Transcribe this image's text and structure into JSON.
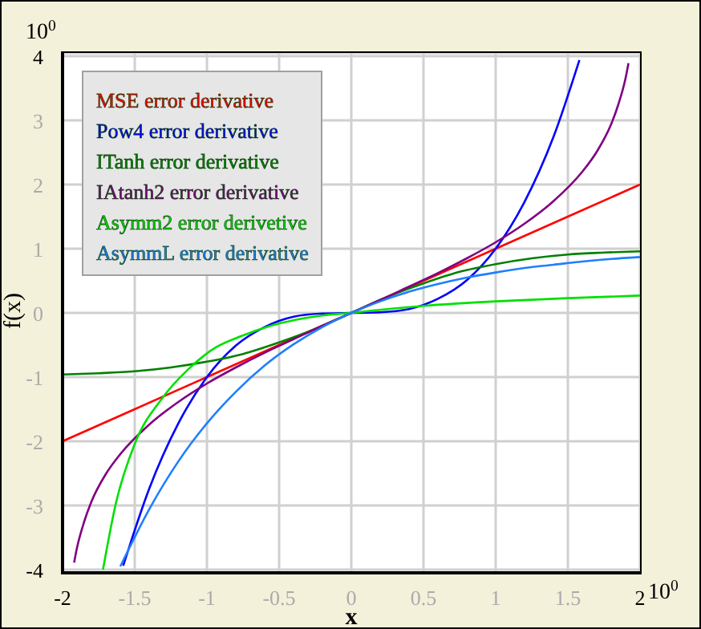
{
  "chart_data": {
    "type": "line",
    "xlabel": "x",
    "ylabel": "f(x)",
    "annotations": [
      "10$^{0}$",
      "10$^{0}$"
    ],
    "xlim": [
      -2,
      2
    ],
    "xticks": [
      -2,
      -1.5,
      -1,
      -0.5,
      0,
      0.5,
      1,
      1.5,
      2
    ],
    "ylim": [
      -4.05,
      4.05
    ],
    "yticks": [
      -4,
      -3,
      -2,
      -1,
      0,
      1,
      2,
      3,
      4
    ],
    "grid": true,
    "legend": "top left",
    "series": [
      {
        "name": "MSE error derivative",
        "color": "#ff0000",
        "x": [
          -2,
          -1,
          0,
          1,
          2
        ],
        "values": [
          -2,
          -1,
          0,
          1,
          2
        ]
      },
      {
        "name": "Pow4 error derivative",
        "color": "#0000ff",
        "x": [
          -1.58,
          -1.4,
          -1.2,
          -1,
          -0.8,
          -0.6,
          -0.4,
          -0.2,
          0,
          0.2,
          0.4,
          0.6,
          0.8,
          1,
          1.2,
          1.4,
          1.58
        ],
        "values": [
          -3.94,
          -2.74,
          -1.73,
          -1,
          -0.51,
          -0.22,
          -0.06,
          -0.01,
          0,
          0.01,
          0.06,
          0.22,
          0.51,
          1,
          1.73,
          2.74,
          3.94
        ]
      },
      {
        "name": "ITanh error derivative",
        "color": "#008000",
        "x": [
          -2,
          -1.75,
          -1.5,
          -1.25,
          -1,
          -0.75,
          -0.5,
          -0.25,
          0,
          0.25,
          0.5,
          0.75,
          1,
          1.25,
          1.5,
          1.75,
          2
        ],
        "values": [
          -0.96,
          -0.94,
          -0.91,
          -0.85,
          -0.76,
          -0.64,
          -0.46,
          -0.25,
          0,
          0.25,
          0.46,
          0.64,
          0.76,
          0.85,
          0.91,
          0.94,
          0.96
        ]
      },
      {
        "name": "IAtanh2 error derivative",
        "color": "#800080",
        "x": [
          -1.92,
          -1.9,
          -1.85,
          -1.8,
          -1.7,
          -1.6,
          -1.4,
          -1.2,
          -1,
          -0.8,
          -0.6,
          -0.4,
          -0.2,
          0,
          0.2,
          0.4,
          0.6,
          0.8,
          1,
          1.2,
          1.4,
          1.6,
          1.7,
          1.8,
          1.85,
          1.9,
          1.92
        ],
        "values": [
          -3.89,
          -3.66,
          -3.25,
          -2.94,
          -2.51,
          -2.2,
          -1.74,
          -1.39,
          -1.1,
          -0.85,
          -0.62,
          -0.41,
          -0.2,
          0,
          0.2,
          0.41,
          0.62,
          0.85,
          1.1,
          1.39,
          1.74,
          2.2,
          2.51,
          2.94,
          3.25,
          3.66,
          3.89
        ]
      },
      {
        "name": "Asymm2 error derivetive",
        "color": "#00e000",
        "x": [
          -1.72,
          -1.63,
          -1.5,
          -1.31,
          -1.13,
          -0.94,
          -0.76,
          -0.57,
          -0.39,
          -0.2,
          0,
          0.25,
          0.5,
          1,
          1.5,
          2
        ],
        "values": [
          -4,
          -2.96,
          -2.04,
          -1.33,
          -0.88,
          -0.54,
          -0.36,
          -0.21,
          -0.11,
          -0.04,
          0,
          0.06,
          0.11,
          0.18,
          0.23,
          0.27
        ]
      },
      {
        "name": "AsymmL error derivative",
        "color": "#1e7fff",
        "x": [
          -1.6,
          -1.4,
          -1.2,
          -1,
          -0.8,
          -0.6,
          -0.4,
          -0.2,
          0,
          0.2,
          0.4,
          0.6,
          0.8,
          1,
          1.2,
          1.4,
          1.6,
          1.8,
          2
        ],
        "values": [
          -3.95,
          -3.06,
          -2.32,
          -1.72,
          -1.23,
          -0.82,
          -0.49,
          -0.22,
          0,
          0.18,
          0.33,
          0.45,
          0.55,
          0.63,
          0.7,
          0.75,
          0.8,
          0.84,
          0.87
        ]
      }
    ]
  }
}
